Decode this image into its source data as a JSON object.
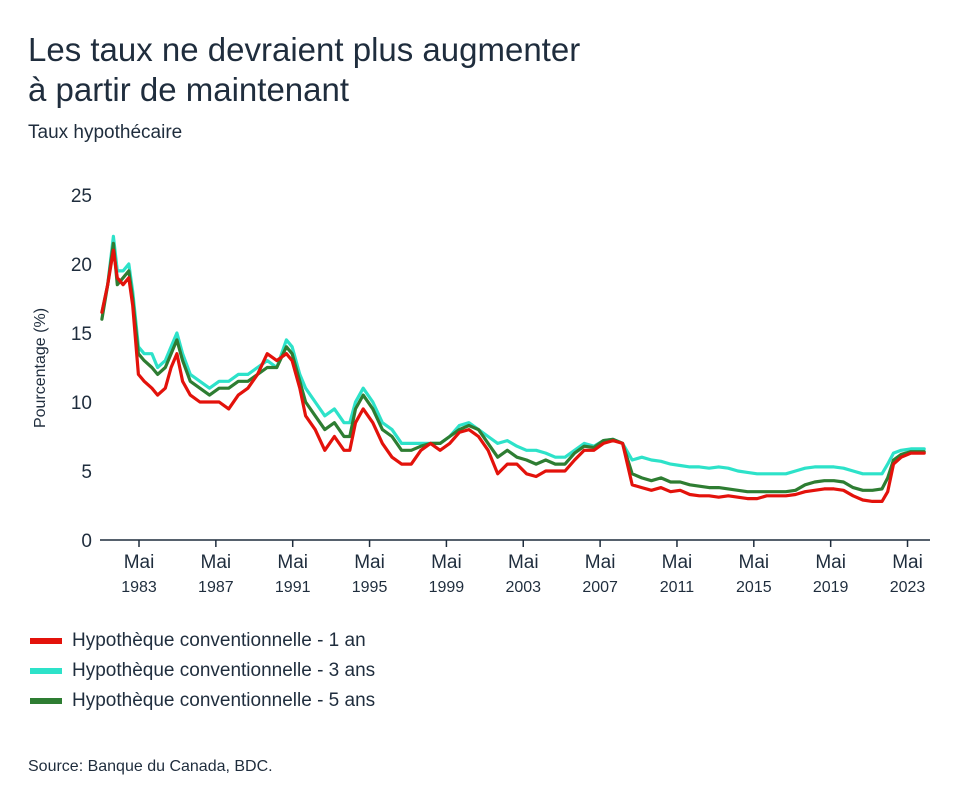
{
  "title_line1": "Les taux ne devraient plus augmenter",
  "title_line2": "à partir de maintenant",
  "subtitle": "Taux hypothécaire",
  "source": "Source: Banque du Canada, BDC.",
  "chart_data": {
    "type": "line",
    "ylabel": "Pourcentage (%)",
    "ylim": [
      0,
      25
    ],
    "yticks": [
      "0",
      "5",
      "10",
      "15",
      "20",
      "25"
    ],
    "xlim": [
      1981.3,
      2024.5
    ],
    "xticks": [
      {
        "x": 1983.33,
        "month": "Mai",
        "year": "1983"
      },
      {
        "x": 1987.33,
        "month": "Mai",
        "year": "1987"
      },
      {
        "x": 1991.33,
        "month": "Mai",
        "year": "1991"
      },
      {
        "x": 1995.33,
        "month": "Mai",
        "year": "1995"
      },
      {
        "x": 1999.33,
        "month": "Mai",
        "year": "1999"
      },
      {
        "x": 2003.33,
        "month": "Mai",
        "year": "2003"
      },
      {
        "x": 2007.33,
        "month": "Mai",
        "year": "2007"
      },
      {
        "x": 2011.33,
        "month": "Mai",
        "year": "2011"
      },
      {
        "x": 2015.33,
        "month": "Mai",
        "year": "2015"
      },
      {
        "x": 2019.33,
        "month": "Mai",
        "year": "2019"
      },
      {
        "x": 2023.33,
        "month": "Mai",
        "year": "2023"
      }
    ],
    "grid": false,
    "legend_position": "bottom-left",
    "series": [
      {
        "name": "Hypothèque conventionnelle - 1 an",
        "color": "#e3120b",
        "points": [
          [
            1981.4,
            16.5
          ],
          [
            1981.7,
            18.5
          ],
          [
            1982.0,
            21.0
          ],
          [
            1982.2,
            19.0
          ],
          [
            1982.5,
            18.5
          ],
          [
            1982.8,
            19.0
          ],
          [
            1983.0,
            17.0
          ],
          [
            1983.3,
            12.0
          ],
          [
            1983.6,
            11.5
          ],
          [
            1984.0,
            11.0
          ],
          [
            1984.3,
            10.5
          ],
          [
            1984.7,
            11.0
          ],
          [
            1985.0,
            12.5
          ],
          [
            1985.3,
            13.5
          ],
          [
            1985.6,
            11.5
          ],
          [
            1986.0,
            10.5
          ],
          [
            1986.5,
            10.0
          ],
          [
            1987.0,
            10.0
          ],
          [
            1987.5,
            10.0
          ],
          [
            1988.0,
            9.5
          ],
          [
            1988.5,
            10.5
          ],
          [
            1989.0,
            11.0
          ],
          [
            1989.5,
            12.0
          ],
          [
            1990.0,
            13.5
          ],
          [
            1990.5,
            13.0
          ],
          [
            1991.0,
            13.5
          ],
          [
            1991.3,
            13.0
          ],
          [
            1991.7,
            11.0
          ],
          [
            1992.0,
            9.0
          ],
          [
            1992.5,
            8.0
          ],
          [
            1993.0,
            6.5
          ],
          [
            1993.5,
            7.5
          ],
          [
            1994.0,
            6.5
          ],
          [
            1994.3,
            6.5
          ],
          [
            1994.6,
            8.5
          ],
          [
            1995.0,
            9.5
          ],
          [
            1995.5,
            8.5
          ],
          [
            1996.0,
            7.0
          ],
          [
            1996.5,
            6.0
          ],
          [
            1997.0,
            5.5
          ],
          [
            1997.5,
            5.5
          ],
          [
            1998.0,
            6.5
          ],
          [
            1998.5,
            7.0
          ],
          [
            1999.0,
            6.5
          ],
          [
            1999.5,
            7.0
          ],
          [
            2000.0,
            7.8
          ],
          [
            2000.5,
            8.0
          ],
          [
            2001.0,
            7.5
          ],
          [
            2001.5,
            6.5
          ],
          [
            2002.0,
            4.8
          ],
          [
            2002.5,
            5.5
          ],
          [
            2003.0,
            5.5
          ],
          [
            2003.5,
            4.8
          ],
          [
            2004.0,
            4.6
          ],
          [
            2004.5,
            5.0
          ],
          [
            2005.0,
            5.0
          ],
          [
            2005.5,
            5.0
          ],
          [
            2006.0,
            5.8
          ],
          [
            2006.5,
            6.5
          ],
          [
            2007.0,
            6.5
          ],
          [
            2007.5,
            7.0
          ],
          [
            2008.0,
            7.2
          ],
          [
            2008.5,
            7.0
          ],
          [
            2009.0,
            4.0
          ],
          [
            2009.5,
            3.8
          ],
          [
            2010.0,
            3.6
          ],
          [
            2010.5,
            3.8
          ],
          [
            2011.0,
            3.5
          ],
          [
            2011.5,
            3.6
          ],
          [
            2012.0,
            3.3
          ],
          [
            2012.5,
            3.2
          ],
          [
            2013.0,
            3.2
          ],
          [
            2013.5,
            3.1
          ],
          [
            2014.0,
            3.2
          ],
          [
            2014.5,
            3.1
          ],
          [
            2015.0,
            3.0
          ],
          [
            2015.5,
            3.0
          ],
          [
            2016.0,
            3.2
          ],
          [
            2016.5,
            3.2
          ],
          [
            2017.0,
            3.2
          ],
          [
            2017.5,
            3.3
          ],
          [
            2018.0,
            3.5
          ],
          [
            2018.5,
            3.6
          ],
          [
            2019.0,
            3.7
          ],
          [
            2019.5,
            3.7
          ],
          [
            2020.0,
            3.6
          ],
          [
            2020.5,
            3.2
          ],
          [
            2021.0,
            2.9
          ],
          [
            2021.5,
            2.8
          ],
          [
            2022.0,
            2.8
          ],
          [
            2022.3,
            3.5
          ],
          [
            2022.6,
            5.5
          ],
          [
            2023.0,
            6.0
          ],
          [
            2023.5,
            6.3
          ],
          [
            2024.2,
            6.3
          ]
        ]
      },
      {
        "name": "Hypothèque conventionnelle - 3 ans",
        "color": "#2de2c9",
        "points": [
          [
            1981.4,
            16.5
          ],
          [
            1981.7,
            18.5
          ],
          [
            1982.0,
            22.0
          ],
          [
            1982.2,
            19.5
          ],
          [
            1982.5,
            19.5
          ],
          [
            1982.8,
            20.0
          ],
          [
            1983.0,
            18.0
          ],
          [
            1983.3,
            14.0
          ],
          [
            1983.6,
            13.5
          ],
          [
            1984.0,
            13.5
          ],
          [
            1984.3,
            12.5
          ],
          [
            1984.7,
            13.0
          ],
          [
            1985.0,
            14.0
          ],
          [
            1985.3,
            15.0
          ],
          [
            1985.6,
            13.5
          ],
          [
            1986.0,
            12.0
          ],
          [
            1986.5,
            11.5
          ],
          [
            1987.0,
            11.0
          ],
          [
            1987.5,
            11.5
          ],
          [
            1988.0,
            11.5
          ],
          [
            1988.5,
            12.0
          ],
          [
            1989.0,
            12.0
          ],
          [
            1989.5,
            12.5
          ],
          [
            1990.0,
            13.0
          ],
          [
            1990.5,
            12.5
          ],
          [
            1991.0,
            14.5
          ],
          [
            1991.3,
            14.0
          ],
          [
            1991.7,
            12.0
          ],
          [
            1992.0,
            11.0
          ],
          [
            1992.5,
            10.0
          ],
          [
            1993.0,
            9.0
          ],
          [
            1993.5,
            9.5
          ],
          [
            1994.0,
            8.5
          ],
          [
            1994.3,
            8.5
          ],
          [
            1994.6,
            10.0
          ],
          [
            1995.0,
            11.0
          ],
          [
            1995.5,
            10.0
          ],
          [
            1996.0,
            8.5
          ],
          [
            1996.5,
            8.0
          ],
          [
            1997.0,
            7.0
          ],
          [
            1997.5,
            7.0
          ],
          [
            1998.0,
            7.0
          ],
          [
            1998.5,
            7.0
          ],
          [
            1999.0,
            7.0
          ],
          [
            1999.5,
            7.5
          ],
          [
            2000.0,
            8.3
          ],
          [
            2000.5,
            8.5
          ],
          [
            2001.0,
            8.0
          ],
          [
            2001.5,
            7.5
          ],
          [
            2002.0,
            7.0
          ],
          [
            2002.5,
            7.2
          ],
          [
            2003.0,
            6.8
          ],
          [
            2003.5,
            6.5
          ],
          [
            2004.0,
            6.5
          ],
          [
            2004.5,
            6.3
          ],
          [
            2005.0,
            6.0
          ],
          [
            2005.5,
            6.0
          ],
          [
            2006.0,
            6.5
          ],
          [
            2006.5,
            7.0
          ],
          [
            2007.0,
            6.8
          ],
          [
            2007.5,
            7.2
          ],
          [
            2008.0,
            7.3
          ],
          [
            2008.5,
            7.0
          ],
          [
            2009.0,
            5.8
          ],
          [
            2009.5,
            6.0
          ],
          [
            2010.0,
            5.8
          ],
          [
            2010.5,
            5.7
          ],
          [
            2011.0,
            5.5
          ],
          [
            2011.5,
            5.4
          ],
          [
            2012.0,
            5.3
          ],
          [
            2012.5,
            5.3
          ],
          [
            2013.0,
            5.2
          ],
          [
            2013.5,
            5.3
          ],
          [
            2014.0,
            5.2
          ],
          [
            2014.5,
            5.0
          ],
          [
            2015.0,
            4.9
          ],
          [
            2015.5,
            4.8
          ],
          [
            2016.0,
            4.8
          ],
          [
            2016.5,
            4.8
          ],
          [
            2017.0,
            4.8
          ],
          [
            2017.5,
            5.0
          ],
          [
            2018.0,
            5.2
          ],
          [
            2018.5,
            5.3
          ],
          [
            2019.0,
            5.3
          ],
          [
            2019.5,
            5.3
          ],
          [
            2020.0,
            5.2
          ],
          [
            2020.5,
            5.0
          ],
          [
            2021.0,
            4.8
          ],
          [
            2021.5,
            4.8
          ],
          [
            2022.0,
            4.8
          ],
          [
            2022.3,
            5.5
          ],
          [
            2022.6,
            6.3
          ],
          [
            2023.0,
            6.5
          ],
          [
            2023.5,
            6.6
          ],
          [
            2024.2,
            6.6
          ]
        ]
      },
      {
        "name": "Hypothèque conventionnelle - 5 ans",
        "color": "#2e7d32",
        "points": [
          [
            1981.4,
            16.0
          ],
          [
            1981.7,
            18.5
          ],
          [
            1982.0,
            21.5
          ],
          [
            1982.2,
            18.5
          ],
          [
            1982.5,
            19.0
          ],
          [
            1982.8,
            19.5
          ],
          [
            1983.0,
            17.5
          ],
          [
            1983.3,
            13.5
          ],
          [
            1983.6,
            13.0
          ],
          [
            1984.0,
            12.5
          ],
          [
            1984.3,
            12.0
          ],
          [
            1984.7,
            12.5
          ],
          [
            1985.0,
            13.5
          ],
          [
            1985.3,
            14.5
          ],
          [
            1985.6,
            13.0
          ],
          [
            1986.0,
            11.5
          ],
          [
            1986.5,
            11.0
          ],
          [
            1987.0,
            10.5
          ],
          [
            1987.5,
            11.0
          ],
          [
            1988.0,
            11.0
          ],
          [
            1988.5,
            11.5
          ],
          [
            1989.0,
            11.5
          ],
          [
            1989.5,
            12.0
          ],
          [
            1990.0,
            12.5
          ],
          [
            1990.5,
            12.5
          ],
          [
            1991.0,
            14.0
          ],
          [
            1991.3,
            13.5
          ],
          [
            1991.7,
            11.5
          ],
          [
            1992.0,
            10.0
          ],
          [
            1992.5,
            9.0
          ],
          [
            1993.0,
            8.0
          ],
          [
            1993.5,
            8.5
          ],
          [
            1994.0,
            7.5
          ],
          [
            1994.3,
            7.5
          ],
          [
            1994.6,
            9.5
          ],
          [
            1995.0,
            10.5
          ],
          [
            1995.5,
            9.5
          ],
          [
            1996.0,
            8.0
          ],
          [
            1996.5,
            7.5
          ],
          [
            1997.0,
            6.5
          ],
          [
            1997.5,
            6.5
          ],
          [
            1998.0,
            6.8
          ],
          [
            1998.5,
            7.0
          ],
          [
            1999.0,
            7.0
          ],
          [
            1999.5,
            7.5
          ],
          [
            2000.0,
            8.0
          ],
          [
            2000.5,
            8.3
          ],
          [
            2001.0,
            8.0
          ],
          [
            2001.5,
            7.0
          ],
          [
            2002.0,
            6.0
          ],
          [
            2002.5,
            6.5
          ],
          [
            2003.0,
            6.0
          ],
          [
            2003.5,
            5.8
          ],
          [
            2004.0,
            5.5
          ],
          [
            2004.5,
            5.8
          ],
          [
            2005.0,
            5.5
          ],
          [
            2005.5,
            5.5
          ],
          [
            2006.0,
            6.3
          ],
          [
            2006.5,
            6.8
          ],
          [
            2007.0,
            6.7
          ],
          [
            2007.5,
            7.2
          ],
          [
            2008.0,
            7.3
          ],
          [
            2008.5,
            7.0
          ],
          [
            2009.0,
            4.8
          ],
          [
            2009.5,
            4.5
          ],
          [
            2010.0,
            4.3
          ],
          [
            2010.5,
            4.5
          ],
          [
            2011.0,
            4.2
          ],
          [
            2011.5,
            4.2
          ],
          [
            2012.0,
            4.0
          ],
          [
            2012.5,
            3.9
          ],
          [
            2013.0,
            3.8
          ],
          [
            2013.5,
            3.8
          ],
          [
            2014.0,
            3.7
          ],
          [
            2014.5,
            3.6
          ],
          [
            2015.0,
            3.5
          ],
          [
            2015.5,
            3.5
          ],
          [
            2016.0,
            3.5
          ],
          [
            2016.5,
            3.5
          ],
          [
            2017.0,
            3.5
          ],
          [
            2017.5,
            3.6
          ],
          [
            2018.0,
            4.0
          ],
          [
            2018.5,
            4.2
          ],
          [
            2019.0,
            4.3
          ],
          [
            2019.5,
            4.3
          ],
          [
            2020.0,
            4.2
          ],
          [
            2020.5,
            3.8
          ],
          [
            2021.0,
            3.6
          ],
          [
            2021.5,
            3.6
          ],
          [
            2022.0,
            3.7
          ],
          [
            2022.3,
            4.5
          ],
          [
            2022.6,
            5.8
          ],
          [
            2023.0,
            6.2
          ],
          [
            2023.5,
            6.4
          ],
          [
            2024.2,
            6.4
          ]
        ]
      }
    ]
  }
}
